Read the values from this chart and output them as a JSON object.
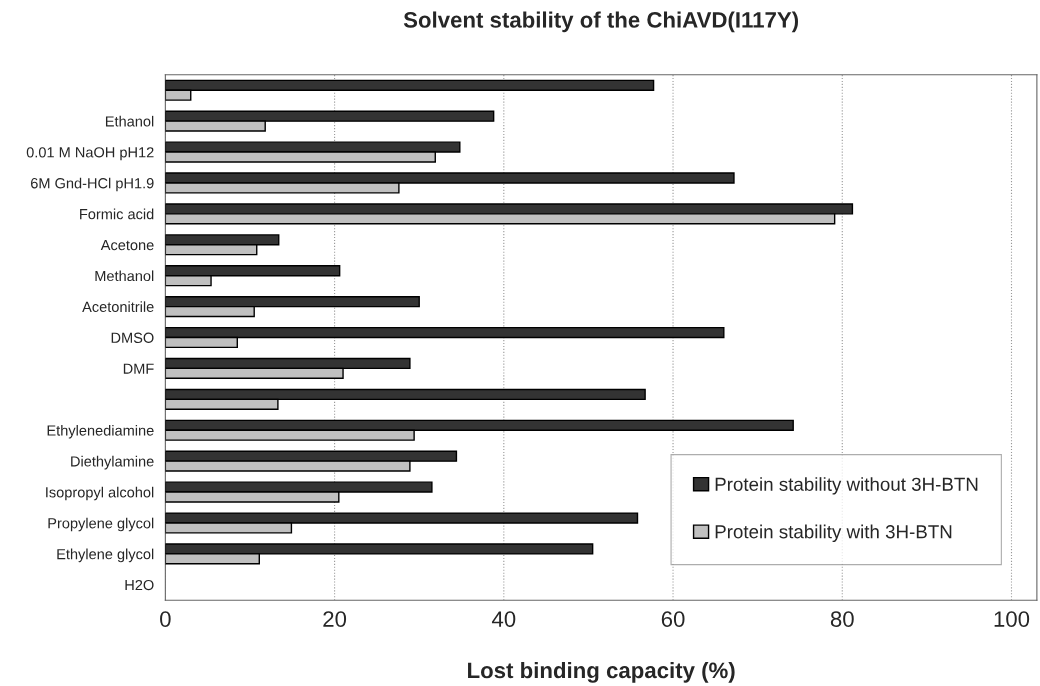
{
  "chart_data": {
    "type": "bar",
    "orientation": "horizontal",
    "title": "Solvent stability of the ChiAVD(I117Y)",
    "xlabel": "Lost binding capacity (%)",
    "categories": [
      null,
      "Ethanol",
      "0.01 M NaOH pH12",
      "6M Gnd-HCl pH1.9",
      "Formic acid",
      "Acetone",
      "Methanol",
      "Acetonitrile",
      "DMSO",
      "DMF",
      null,
      "Ethylenediamine",
      "Diethylamine",
      "Isopropyl alcohol",
      "Propylene glycol",
      "Ethylene glycol",
      "H2O"
    ],
    "series": [
      {
        "name": "Protein stability without 3H-BTN",
        "color": "#333333",
        "values": [
          57.7,
          38.8,
          34.8,
          67.2,
          81.2,
          13.4,
          20.6,
          30.0,
          66.0,
          28.9,
          56.7,
          74.2,
          34.4,
          31.5,
          55.8,
          50.5,
          null
        ]
      },
      {
        "name": "Protein stability with 3H-BTN",
        "color": "#c0c0c0",
        "values": [
          3.0,
          11.8,
          31.9,
          27.6,
          79.1,
          10.8,
          5.4,
          10.5,
          8.5,
          21.0,
          13.3,
          29.4,
          28.9,
          20.5,
          14.9,
          11.1,
          null
        ]
      }
    ],
    "xlim": [
      0,
      103
    ],
    "xticks": [
      0,
      20,
      40,
      60,
      80,
      100
    ],
    "grid": "x",
    "legend": "bottom right"
  }
}
